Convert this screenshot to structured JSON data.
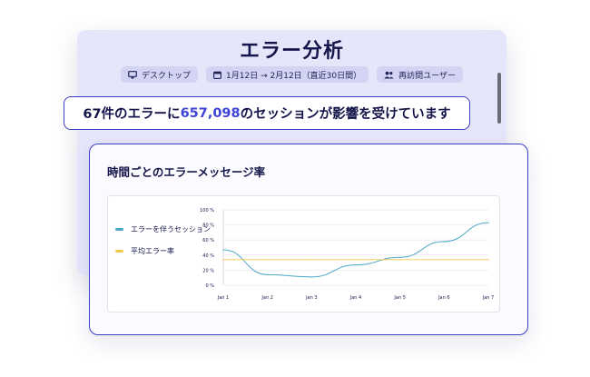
{
  "title": "エラー分析",
  "filters": [
    {
      "icon": "desktop-icon",
      "label": "デスクトップ"
    },
    {
      "icon": "calendar-icon",
      "label": "1月12日 → 2月12日（直近30日間）"
    },
    {
      "icon": "users-icon",
      "label": "再訪問ユーザー"
    }
  ],
  "headline": {
    "prefix": "67件のエラーに",
    "highlight": "657,098",
    "suffix": "のセッションが影響を受けています"
  },
  "colors": {
    "accent": "#3e44d6",
    "border": "#3a3fc4",
    "background_panel": "#e6e6fb",
    "series_sessions": "#4aa8c8",
    "series_average": "#f3c84a"
  },
  "card": {
    "title": "時間ごとのエラーメッセージ率"
  },
  "chart_data": {
    "type": "line",
    "title": "",
    "x": [
      "Jan 1",
      "Jan 2",
      "Jan 3",
      "Jan 4",
      "Jan 5",
      "Jan 6",
      "Jan 7"
    ],
    "y_ticks": [
      "100 %",
      "80 %",
      "60 %",
      "40 %",
      "20 %",
      "0 %"
    ],
    "ylim": [
      0,
      100
    ],
    "grid": true,
    "legend_position": "left",
    "series": [
      {
        "name": "エラーを伴うセッション",
        "color": "#4aa8c8",
        "values": [
          47,
          14,
          11,
          27,
          37,
          58,
          83
        ]
      },
      {
        "name": "平均エラー率",
        "color": "#f3c84a",
        "values": [
          34,
          34,
          34,
          34,
          34,
          34,
          34
        ]
      }
    ]
  }
}
